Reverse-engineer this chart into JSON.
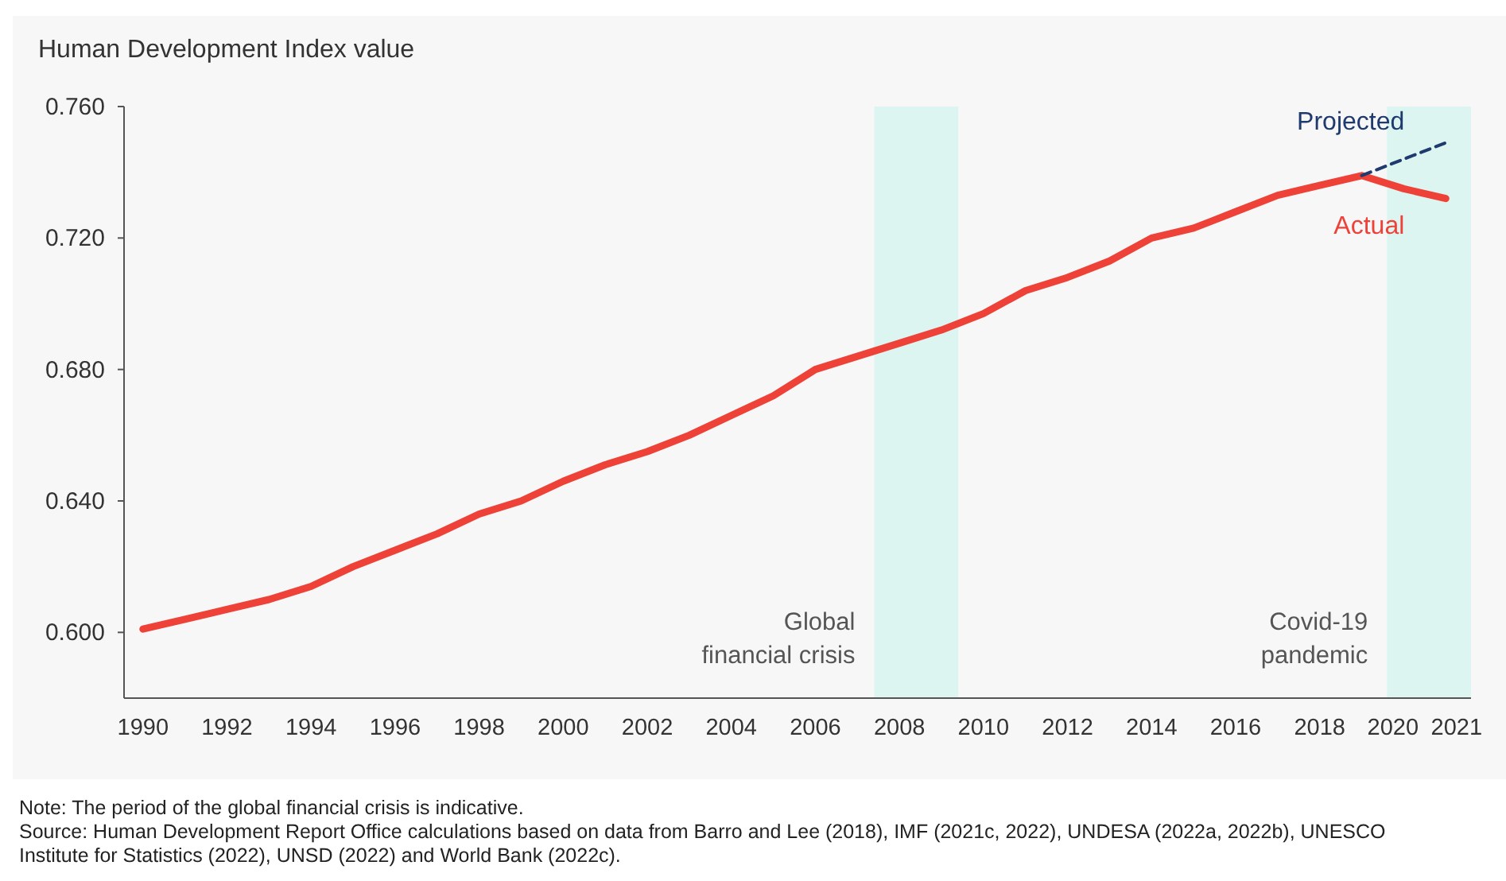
{
  "chart_data": {
    "type": "line",
    "ylabel": "Human Development Index value",
    "x": [
      1990,
      1991,
      1992,
      1993,
      1994,
      1995,
      1996,
      1997,
      1998,
      1999,
      2000,
      2001,
      2002,
      2003,
      2004,
      2005,
      2006,
      2007,
      2008,
      2009,
      2010,
      2011,
      2012,
      2013,
      2014,
      2015,
      2016,
      2017,
      2018,
      2019,
      2020,
      2021
    ],
    "series": [
      {
        "name": "Actual",
        "color": "#ee4137",
        "line_style": "solid",
        "values": [
          0.601,
          0.604,
          0.607,
          0.61,
          0.614,
          0.62,
          0.625,
          0.63,
          0.636,
          0.64,
          0.646,
          0.651,
          0.655,
          0.66,
          0.666,
          0.672,
          0.68,
          0.684,
          0.688,
          0.692,
          0.697,
          0.704,
          0.708,
          0.713,
          0.72,
          0.723,
          0.728,
          0.733,
          0.736,
          0.739,
          0.735,
          0.732
        ]
      },
      {
        "name": "Projected",
        "color": "#1f3a6e",
        "line_style": "dashed",
        "x": [
          2019,
          2021
        ],
        "values": [
          0.739,
          0.749
        ]
      }
    ],
    "xlim": [
      1989.55,
      2021.6
    ],
    "ylim": [
      0.58,
      0.76
    ],
    "xticks": [
      1990,
      1992,
      1994,
      1996,
      1998,
      2000,
      2002,
      2004,
      2006,
      2008,
      2010,
      2012,
      2014,
      2016,
      2018,
      2020,
      2021
    ],
    "yticks": [
      {
        "value": 0.6,
        "label": "0.600"
      },
      {
        "value": 0.64,
        "label": "0.640"
      },
      {
        "value": 0.68,
        "label": "0.680"
      },
      {
        "value": 0.72,
        "label": "0.720"
      },
      {
        "value": 0.76,
        "label": "0.760"
      }
    ],
    "bands": [
      {
        "axis": "x",
        "from": 2007.4,
        "to": 2009.4,
        "label": "Global financial crisis",
        "color": "#ddf5f1"
      },
      {
        "axis": "x",
        "from": 2019.6,
        "to": 2021.6,
        "label": "Covid-19 pandemic",
        "color": "#ddf5f1"
      }
    ],
    "grid": false,
    "marker": "none",
    "annotations": [
      "Note: The period of the global financial crisis is indicative.",
      "Source: Human Development Report Office calculations based on data from Barro and Lee (2018), IMF (2021c, 2022), UNDESA (2022a, 2022b), UNESCO Institute for Statistics (2022), UNSD (2022) and World Bank (2022c)."
    ]
  }
}
